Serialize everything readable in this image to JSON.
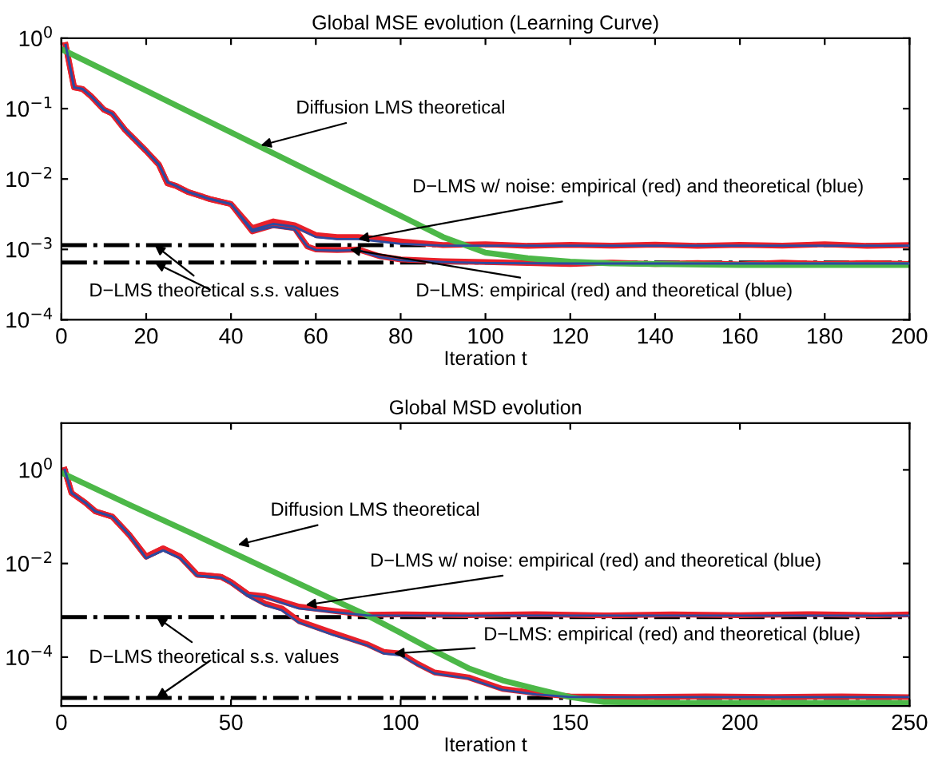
{
  "chart_data": [
    {
      "type": "line",
      "title": "Global MSE evolution (Learning Curve)",
      "xlabel": "Iteration t",
      "log": "y",
      "grid": false,
      "line_style": "solid",
      "xlim": [
        0,
        200
      ],
      "xticks": [
        0,
        20,
        40,
        60,
        80,
        100,
        120,
        140,
        160,
        180,
        200
      ],
      "ylim": [
        0.0001,
        1
      ],
      "yticks": [
        {
          "value": 1,
          "label": "10$^{0}$"
        },
        {
          "value": 0.1,
          "label": "10$^{−1}$"
        },
        {
          "value": 0.01,
          "label": "10$^{−2}$"
        },
        {
          "value": 0.001,
          "label": "10$^{−3}$"
        },
        {
          "value": 0.0001,
          "label": "10$^{−4}$"
        }
      ],
      "series": [
        {
          "color": "#2b4ba0",
          "x": [
            1,
            3,
            5,
            7,
            10,
            12,
            15,
            20,
            23,
            25,
            27,
            30,
            35,
            40,
            45,
            50,
            55,
            60,
            65,
            70,
            75,
            80,
            90,
            100,
            150,
            200
          ],
          "values": [
            0.8,
            0.2,
            0.19,
            0.15,
            0.097,
            0.085,
            0.05,
            0.025,
            0.016,
            0.009,
            0.008,
            0.0065,
            0.0052,
            0.0044,
            0.0019,
            0.0023,
            0.0021,
            0.0015,
            0.0014,
            0.0014,
            0.0013,
            0.0012,
            0.00113,
            0.00113,
            0.00113,
            0.00113
          ]
        },
        {
          "color": "#e8202a",
          "x": [
            1,
            3,
            5,
            7,
            10,
            12,
            15,
            20,
            23,
            25,
            27,
            30,
            35,
            40,
            45,
            50,
            55,
            60,
            65,
            70,
            75,
            80,
            90,
            100,
            110,
            120,
            130,
            140,
            150,
            160,
            170,
            180,
            190,
            200
          ],
          "values": [
            0.8,
            0.2,
            0.19,
            0.15,
            0.097,
            0.085,
            0.05,
            0.025,
            0.016,
            0.0087,
            0.008,
            0.0065,
            0.0052,
            0.0044,
            0.002,
            0.0025,
            0.0022,
            0.0016,
            0.0015,
            0.0015,
            0.0014,
            0.0013,
            0.00115,
            0.00118,
            0.00112,
            0.00116,
            0.00113,
            0.00117,
            0.00112,
            0.00116,
            0.00113,
            0.00118,
            0.00112,
            0.00115
          ]
        },
        {
          "color": "#2b4ba0",
          "x": [
            1,
            3,
            5,
            7,
            10,
            12,
            15,
            20,
            23,
            25,
            27,
            30,
            35,
            40,
            45,
            50,
            55,
            58,
            60,
            65,
            70,
            75,
            80,
            90,
            100,
            120,
            140,
            200
          ],
          "values": [
            0.8,
            0.2,
            0.19,
            0.15,
            0.097,
            0.085,
            0.05,
            0.025,
            0.016,
            0.009,
            0.008,
            0.0065,
            0.0052,
            0.0044,
            0.0018,
            0.0021,
            0.0019,
            0.0011,
            0.00098,
            0.00096,
            0.00098,
            0.00078,
            0.0007,
            0.00066,
            0.00064,
            0.00063,
            0.00063,
            0.00063
          ]
        },
        {
          "color": "#e8202a",
          "x": [
            1,
            3,
            5,
            7,
            10,
            12,
            15,
            20,
            23,
            25,
            27,
            30,
            35,
            40,
            45,
            50,
            55,
            58,
            60,
            65,
            70,
            75,
            80,
            90,
            100,
            110,
            120,
            130,
            140,
            150,
            160,
            170,
            180,
            190,
            200
          ],
          "values": [
            0.8,
            0.2,
            0.19,
            0.15,
            0.097,
            0.085,
            0.05,
            0.025,
            0.016,
            0.0087,
            0.008,
            0.0065,
            0.0052,
            0.0044,
            0.0018,
            0.0022,
            0.002,
            0.0011,
            0.001,
            0.00098,
            0.001,
            0.0008,
            0.00072,
            0.00068,
            0.00066,
            0.00064,
            0.00062,
            0.00065,
            0.00062,
            0.00064,
            0.00061,
            0.00065,
            0.00062,
            0.00064,
            0.00062
          ]
        },
        {
          "color": "#4cb848",
          "x": [
            0,
            20,
            40,
            60,
            80,
            90,
            100,
            110,
            120,
            130,
            140,
            160,
            200
          ],
          "values": [
            0.7,
            0.18,
            0.046,
            0.0117,
            0.003,
            0.0015,
            0.0009,
            0.00075,
            0.00067,
            0.00063,
            0.00062,
            0.0006,
            0.0006
          ]
        }
      ],
      "ref_lines": [
        {
          "axis": "y",
          "value": 0.00115,
          "color": "#000000",
          "line_style": "dashdot"
        },
        {
          "axis": "y",
          "value": 0.00065,
          "color": "#000000",
          "line_style": "dashdot"
        }
      ],
      "annotations": [
        {
          "text": "Diffusion LMS theoretical",
          "x": 47,
          "y": 0.03
        },
        {
          "text": "D−LMS w/ noise: empirical (red) and theoretical (blue)",
          "x": 70,
          "y": 0.0014
        },
        {
          "text": "D−LMS: empirical (red) and theoretical (blue)",
          "x": 68,
          "y": 0.001
        },
        {
          "text": "D−LMS theoretical s.s. values",
          "x": 22,
          "y": 0.00115
        }
      ]
    },
    {
      "type": "line",
      "title": "Global MSD evolution",
      "xlabel": "Iteration t",
      "log": "y",
      "grid": false,
      "line_style": "solid",
      "xlim": [
        0,
        250
      ],
      "xticks": [
        0,
        50,
        100,
        150,
        200,
        250
      ],
      "ylim": [
        9e-06,
        10
      ],
      "yticks": [
        {
          "value": 1,
          "label": "10$^{0}$"
        },
        {
          "value": 0.01,
          "label": "10$^{−2}$"
        },
        {
          "value": 0.0001,
          "label": "10$^{−4}$"
        }
      ],
      "series": [
        {
          "color": "#2b4ba0",
          "x": [
            1,
            3,
            7,
            10,
            15,
            20,
            25,
            30,
            35,
            40,
            47,
            50,
            55,
            60,
            70,
            80,
            90,
            100,
            250
          ],
          "values": [
            1,
            0.32,
            0.2,
            0.13,
            0.1,
            0.041,
            0.013,
            0.019,
            0.013,
            0.0055,
            0.005,
            0.0038,
            0.0021,
            0.0019,
            0.0011,
            0.00092,
            0.00078,
            0.00077,
            0.00077
          ]
        },
        {
          "color": "#e8202a",
          "x": [
            1,
            3,
            7,
            10,
            15,
            20,
            25,
            30,
            35,
            40,
            47,
            50,
            55,
            60,
            70,
            80,
            90,
            100,
            120,
            140,
            160,
            180,
            200,
            220,
            240,
            250
          ],
          "values": [
            1,
            0.32,
            0.2,
            0.13,
            0.1,
            0.041,
            0.014,
            0.021,
            0.014,
            0.0058,
            0.0052,
            0.004,
            0.0022,
            0.002,
            0.0012,
            0.00098,
            0.0008,
            0.00082,
            0.00079,
            0.00083,
            0.00078,
            0.00082,
            0.00079,
            0.00083,
            0.00079,
            0.00082
          ]
        },
        {
          "color": "#2b4ba0",
          "x": [
            1,
            3,
            7,
            10,
            15,
            20,
            25,
            30,
            35,
            40,
            47,
            50,
            55,
            60,
            65,
            70,
            80,
            90,
            95,
            100,
            105,
            110,
            120,
            130,
            140,
            150,
            250
          ],
          "values": [
            1,
            0.32,
            0.2,
            0.13,
            0.1,
            0.041,
            0.013,
            0.019,
            0.013,
            0.0055,
            0.005,
            0.0038,
            0.002,
            0.0013,
            0.001,
            0.00055,
            0.0003,
            0.00018,
            0.00012,
            0.00011,
            6.8e-05,
            4.5e-05,
            3.5e-05,
            2e-05,
            1.6e-05,
            1.4e-05,
            1.4e-05
          ]
        },
        {
          "color": "#e8202a",
          "x": [
            1,
            3,
            7,
            10,
            15,
            20,
            25,
            30,
            35,
            40,
            47,
            50,
            55,
            60,
            65,
            70,
            80,
            90,
            95,
            100,
            105,
            110,
            120,
            130,
            140,
            150,
            170,
            190,
            210,
            230,
            250
          ],
          "values": [
            1,
            0.32,
            0.2,
            0.13,
            0.1,
            0.041,
            0.014,
            0.021,
            0.014,
            0.0058,
            0.0052,
            0.004,
            0.0022,
            0.0014,
            0.0011,
            0.00059,
            0.00033,
            0.00019,
            0.00013,
            0.00012,
            7.2e-05,
            4.7e-05,
            3.7e-05,
            2.1e-05,
            1.7e-05,
            1.45e-05,
            1.4e-05,
            1.45e-05,
            1.4e-05,
            1.45e-05,
            1.4e-05
          ]
        },
        {
          "color": "#4cb848",
          "x": [
            0,
            20,
            40,
            60,
            80,
            90,
            100,
            110,
            120,
            130,
            140,
            150,
            160,
            180,
            200,
            250
          ],
          "values": [
            0.87,
            0.18,
            0.039,
            0.0081,
            0.0017,
            0.00079,
            0.00033,
            0.000135,
            5.8e-05,
            3.2e-05,
            2.1e-05,
            1.4e-05,
            1.1e-05,
            1.05e-05,
            1.05e-05,
            1.05e-05
          ]
        }
      ],
      "ref_lines": [
        {
          "axis": "y",
          "value": 0.00072,
          "color": "#000000",
          "line_style": "dashdot"
        },
        {
          "axis": "y",
          "value": 1.35e-05,
          "color": "#000000",
          "line_style": "dashdot"
        }
      ],
      "annotations": [
        {
          "text": "Diffusion LMS theoretical",
          "x": 52,
          "y": 0.025
        },
        {
          "text": "D−LMS w/ noise: empirical (red) and theoretical (blue)",
          "x": 72,
          "y": 0.0013
        },
        {
          "text": "D−LMS: empirical (red) and theoretical (blue)",
          "x": 98,
          "y": 0.00012
        },
        {
          "text": "D−LMS theoretical s.s. values",
          "x": 28,
          "y": 0.00072
        }
      ]
    }
  ]
}
